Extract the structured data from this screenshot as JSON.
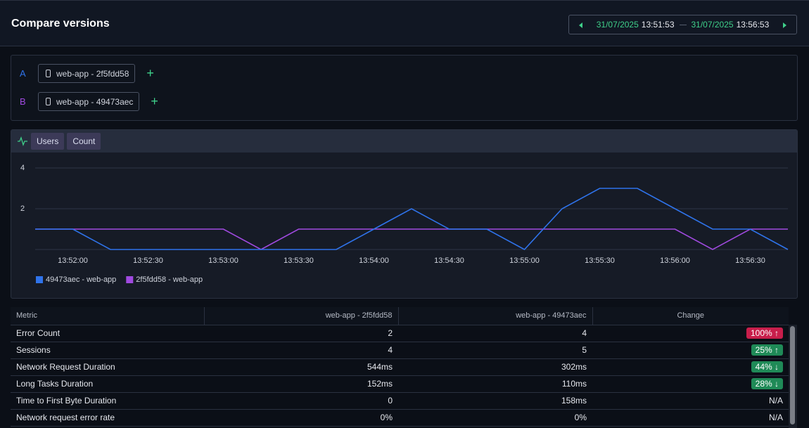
{
  "header": {
    "title": "Compare versions",
    "range": {
      "start_date": "31/07/2025",
      "start_time": "13:51:53",
      "end_date": "31/07/2025",
      "end_time": "13:56:53"
    }
  },
  "versions": [
    {
      "letter": "A",
      "label": "web-app - 2f5fdd58",
      "color": "#2f73ea"
    },
    {
      "letter": "B",
      "label": "web-app - 49473aec",
      "color": "#a04ae0"
    }
  ],
  "tabs": [
    "Users",
    "Count"
  ],
  "chart_data": {
    "type": "line",
    "categories": [
      null,
      "13:52:00",
      null,
      "13:52:30",
      null,
      "13:53:00",
      null,
      "13:53:30",
      null,
      "13:54:00",
      null,
      "13:54:30",
      null,
      "13:55:00",
      null,
      "13:55:30",
      null,
      "13:56:00",
      null,
      "13:56:30",
      null
    ],
    "series": [
      {
        "name": "49473aec - web-app",
        "color": "#2f73ea",
        "values": [
          1,
          1,
          0,
          0,
          0,
          0,
          0,
          0,
          0,
          1,
          2,
          1,
          1,
          0,
          2,
          3,
          3,
          2,
          1,
          1,
          0
        ]
      },
      {
        "name": "2f5fdd58 - web-app",
        "color": "#a04ae0",
        "values": [
          1,
          1,
          1,
          1,
          1,
          1,
          0,
          1,
          1,
          1,
          1,
          1,
          1,
          1,
          1,
          1,
          1,
          1,
          0,
          1,
          1
        ]
      }
    ],
    "ylim": [
      0,
      4.5
    ],
    "yticks": [
      2,
      4
    ],
    "grid": true,
    "legend": "bottom-left"
  },
  "table": {
    "headers": [
      "Metric",
      "web-app - 2f5fdd58",
      "web-app - 49473aec",
      "Change"
    ],
    "rows": [
      [
        "Error Count",
        "2",
        "4",
        {
          "text": "100% ↑",
          "color": "red"
        }
      ],
      [
        "Sessions",
        "4",
        "5",
        {
          "text": "25% ↑",
          "color": "green"
        }
      ],
      [
        "Network Request Duration",
        "544ms",
        "302ms",
        {
          "text": "44% ↓",
          "color": "green"
        }
      ],
      [
        "Long Tasks Duration",
        "152ms",
        "110ms",
        {
          "text": "28% ↓",
          "color": "green"
        }
      ],
      [
        "Time to First Byte Duration",
        "0",
        "158ms",
        {
          "text": "N/A",
          "color": null
        }
      ],
      [
        "Network request error rate",
        "0%",
        "0%",
        {
          "text": "N/A",
          "color": null
        }
      ]
    ]
  }
}
